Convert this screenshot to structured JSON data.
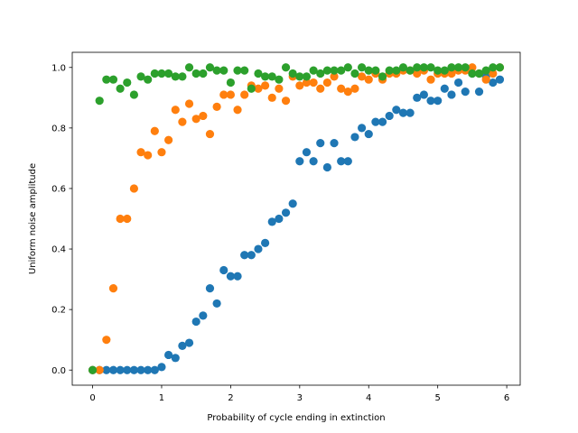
{
  "chart_data": {
    "type": "scatter",
    "title": "",
    "xlabel": "Probability of cycle ending in extinction",
    "ylabel": "Uniform noise amplitude",
    "xlim": [
      -0.295,
      6.195
    ],
    "ylim": [
      -0.05,
      1.05
    ],
    "xticks": [
      0,
      1,
      2,
      3,
      4,
      5,
      6
    ],
    "yticks": [
      0.0,
      0.2,
      0.4,
      0.6,
      0.8,
      1.0
    ],
    "ytick_labels": [
      "0.0",
      "0.2",
      "0.4",
      "0.6",
      "0.8",
      "1.0"
    ],
    "grid": false,
    "legend": "none",
    "x": [
      0.0,
      0.1,
      0.2,
      0.3,
      0.4,
      0.5,
      0.6,
      0.7,
      0.8,
      0.9,
      1.0,
      1.1,
      1.2,
      1.3,
      1.4,
      1.5,
      1.6,
      1.7,
      1.8,
      1.9,
      2.0,
      2.1,
      2.2,
      2.3,
      2.4,
      2.5,
      2.6,
      2.7,
      2.8,
      2.9,
      3.0,
      3.1,
      3.2,
      3.3,
      3.4,
      3.5,
      3.6,
      3.7,
      3.8,
      3.9,
      4.0,
      4.1,
      4.2,
      4.3,
      4.4,
      4.5,
      4.6,
      4.7,
      4.8,
      4.9,
      5.0,
      5.1,
      5.2,
      5.3,
      5.4,
      5.5,
      5.6,
      5.7,
      5.8,
      5.9
    ],
    "series": [
      {
        "color": "#1f77b4",
        "values": [
          0.0,
          0.0,
          0.0,
          0.0,
          0.0,
          0.0,
          0.0,
          0.0,
          0.0,
          0.0,
          0.01,
          0.05,
          0.04,
          0.08,
          0.09,
          0.16,
          0.18,
          0.27,
          0.22,
          0.33,
          0.31,
          0.31,
          0.38,
          0.38,
          0.4,
          0.42,
          0.49,
          0.5,
          0.52,
          0.55,
          0.69,
          0.72,
          0.69,
          0.75,
          0.67,
          0.75,
          0.69,
          0.69,
          0.77,
          0.8,
          0.78,
          0.82,
          0.82,
          0.84,
          0.86,
          0.85,
          0.85,
          0.9,
          0.91,
          0.89,
          0.89,
          0.93,
          0.91,
          0.95,
          0.92,
          0.98,
          0.92,
          0.97,
          0.95,
          0.96
        ]
      },
      {
        "color": "#ff7f0e",
        "values": [
          0.0,
          0.0,
          0.1,
          0.27,
          0.5,
          0.5,
          0.6,
          0.72,
          0.71,
          0.79,
          0.72,
          0.76,
          0.86,
          0.82,
          0.88,
          0.83,
          0.84,
          0.78,
          0.87,
          0.91,
          0.91,
          0.86,
          0.91,
          0.94,
          0.93,
          0.94,
          0.9,
          0.93,
          0.89,
          0.97,
          0.94,
          0.95,
          0.95,
          0.93,
          0.95,
          0.97,
          0.93,
          0.92,
          0.93,
          0.97,
          0.96,
          0.98,
          0.96,
          0.98,
          0.98,
          0.99,
          0.99,
          0.98,
          0.99,
          0.96,
          0.98,
          0.98,
          0.98,
          0.99,
          0.99,
          1.0,
          0.98,
          0.96,
          0.98,
          1.0
        ]
      },
      {
        "color": "#2ca02c",
        "values": [
          0.0,
          0.89,
          0.96,
          0.96,
          0.93,
          0.95,
          0.91,
          0.97,
          0.96,
          0.98,
          0.98,
          0.98,
          0.97,
          0.97,
          1.0,
          0.98,
          0.98,
          1.0,
          0.99,
          0.99,
          0.95,
          0.99,
          0.99,
          0.93,
          0.98,
          0.97,
          0.97,
          0.96,
          1.0,
          0.98,
          0.97,
          0.97,
          0.99,
          0.98,
          0.99,
          0.99,
          0.99,
          1.0,
          0.98,
          1.0,
          0.99,
          0.99,
          0.97,
          0.99,
          0.99,
          1.0,
          0.99,
          1.0,
          1.0,
          1.0,
          0.99,
          0.99,
          1.0,
          1.0,
          1.0,
          0.98,
          0.98,
          0.99,
          1.0,
          1.0
        ]
      }
    ]
  }
}
